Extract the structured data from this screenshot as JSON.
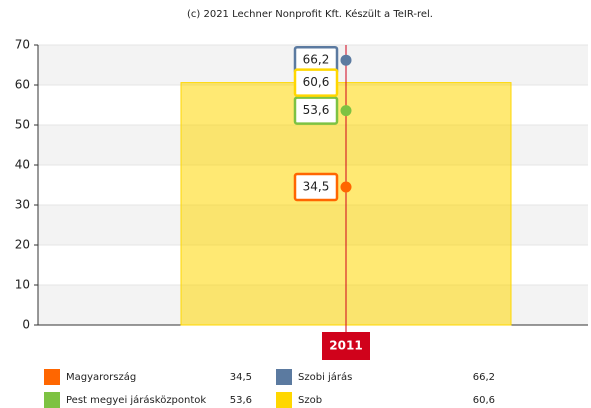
{
  "chart_data": {
    "type": "bar",
    "title": "(c) 2021 Lechner Nonprofit Kft. Készült a TeIR-rel.",
    "categories": [
      "2011"
    ],
    "ylim": [
      0,
      70
    ],
    "yticks": [
      0,
      10,
      20,
      30,
      40,
      50,
      60,
      70
    ],
    "series": [
      {
        "name": "Magyarország",
        "color": "#ff6600",
        "type": "scatter",
        "values": [
          34.5
        ],
        "value_labels": [
          "34,5"
        ]
      },
      {
        "name": "Pest megyei járásközpontok",
        "color": "#7dc242",
        "type": "scatter",
        "values": [
          53.6
        ],
        "value_labels": [
          "53,6"
        ]
      },
      {
        "name": "Szobi járás",
        "color": "#5b7aa0",
        "type": "scatter",
        "values": [
          66.2
        ],
        "value_labels": [
          "66,2"
        ]
      },
      {
        "name": "Szob",
        "color": "#ffd700",
        "type": "bar",
        "values": [
          60.6
        ],
        "value_labels": [
          "60,6"
        ]
      }
    ]
  }
}
